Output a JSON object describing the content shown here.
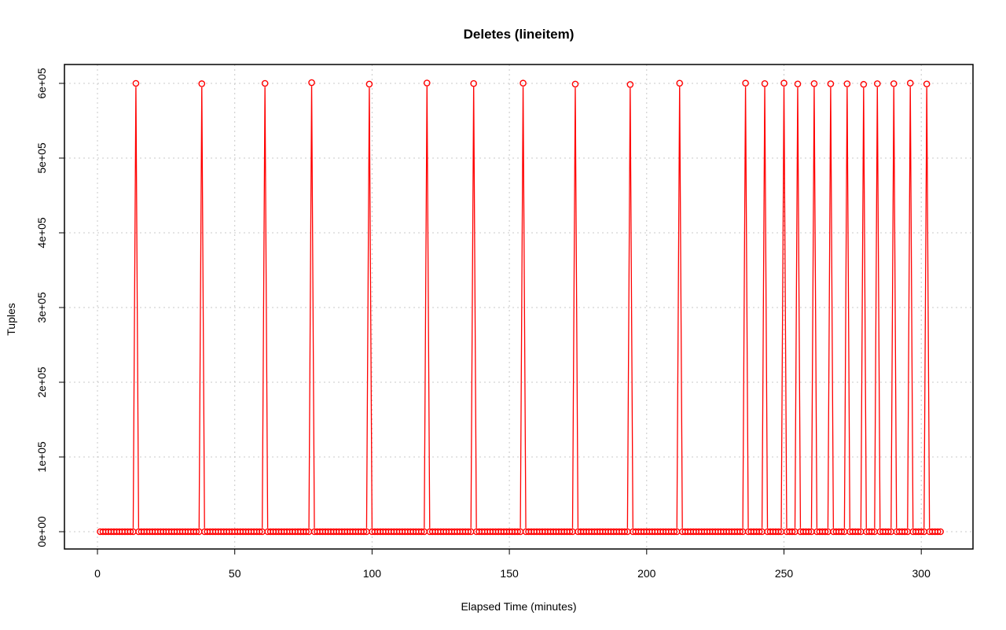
{
  "chart_data": {
    "type": "line",
    "title": "Deletes (lineitem)",
    "xlabel": "Elapsed Time (minutes)",
    "ylabel": "Tuples",
    "xlim": [
      0,
      308
    ],
    "ylim": [
      0,
      600000
    ],
    "x_ticks": [
      0,
      50,
      100,
      150,
      200,
      250,
      300
    ],
    "y_ticks": [
      {
        "value": 0,
        "label": "0e+00"
      },
      {
        "value": 100000,
        "label": "1e+05"
      },
      {
        "value": 200000,
        "label": "2e+05"
      },
      {
        "value": 300000,
        "label": "3e+05"
      },
      {
        "value": 400000,
        "label": "4e+05"
      },
      {
        "value": 500000,
        "label": "5e+05"
      },
      {
        "value": 600000,
        "label": "6e+05"
      }
    ],
    "grid": true,
    "series_color": "#ff0000",
    "marker": "open-circle",
    "x_start": 1,
    "x_end": 307,
    "baseline_value": 0,
    "peaks": [
      {
        "x": 14,
        "y": 600000
      },
      {
        "x": 38,
        "y": 599500
      },
      {
        "x": 61,
        "y": 600000
      },
      {
        "x": 78,
        "y": 601000
      },
      {
        "x": 99,
        "y": 599000
      },
      {
        "x": 120,
        "y": 600500
      },
      {
        "x": 137,
        "y": 599800
      },
      {
        "x": 155,
        "y": 600300
      },
      {
        "x": 174,
        "y": 599000
      },
      {
        "x": 194,
        "y": 598500
      },
      {
        "x": 212,
        "y": 600200
      },
      {
        "x": 236,
        "y": 600300
      },
      {
        "x": 243,
        "y": 599700
      },
      {
        "x": 250,
        "y": 600300
      },
      {
        "x": 255,
        "y": 599200
      },
      {
        "x": 261,
        "y": 599700
      },
      {
        "x": 267,
        "y": 599400
      },
      {
        "x": 273,
        "y": 599400
      },
      {
        "x": 279,
        "y": 598700
      },
      {
        "x": 284,
        "y": 599600
      },
      {
        "x": 290,
        "y": 599600
      },
      {
        "x": 296,
        "y": 600300
      },
      {
        "x": 302,
        "y": 599200
      }
    ]
  }
}
